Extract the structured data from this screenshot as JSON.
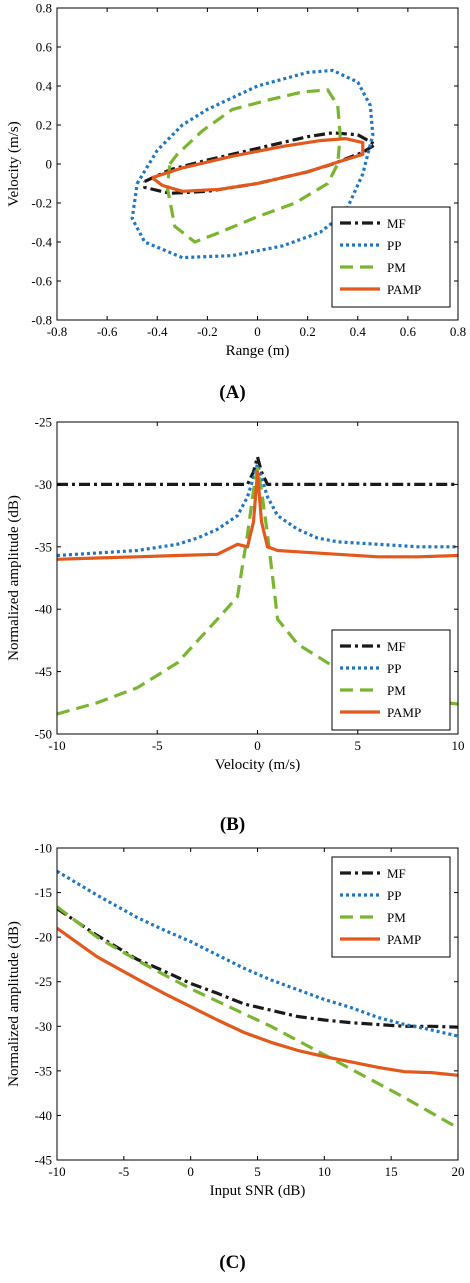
{
  "chart_data": [
    {
      "panel": "(A)",
      "type": "line",
      "xlabel": "Range (m)",
      "ylabel": "Velocity (m/s)",
      "xlim": [
        -0.8,
        0.8
      ],
      "ylim": [
        -0.8,
        0.8
      ],
      "xticks": [
        -0.8,
        -0.6,
        -0.4,
        -0.2,
        0,
        0.2,
        0.4,
        0.6,
        0.8
      ],
      "yticks": [
        -0.8,
        -0.6,
        -0.4,
        -0.2,
        0,
        0.2,
        0.4,
        0.6,
        0.8
      ],
      "legend_position": "bottom-right",
      "series": [
        {
          "name": "MF",
          "color": "#1a1a1a",
          "style": "dashdot",
          "points": [
            [
              -0.45,
              -0.09
            ],
            [
              -0.35,
              -0.03
            ],
            [
              -0.2,
              0.02
            ],
            [
              0,
              0.08
            ],
            [
              0.2,
              0.14
            ],
            [
              0.3,
              0.16
            ],
            [
              0.4,
              0.15
            ],
            [
              0.47,
              0.1
            ],
            [
              0.42,
              0.06
            ],
            [
              0.3,
              0.0
            ],
            [
              0.2,
              -0.04
            ],
            [
              0,
              -0.1
            ],
            [
              -0.2,
              -0.14
            ],
            [
              -0.35,
              -0.15
            ],
            [
              -0.45,
              -0.12
            ],
            [
              -0.45,
              -0.09
            ]
          ]
        },
        {
          "name": "PP",
          "color": "#1f77c4",
          "style": "dotted",
          "points": [
            [
              -0.48,
              -0.1
            ],
            [
              -0.4,
              0.07
            ],
            [
              -0.3,
              0.2
            ],
            [
              -0.2,
              0.28
            ],
            [
              0,
              0.4
            ],
            [
              0.2,
              0.47
            ],
            [
              0.3,
              0.48
            ],
            [
              0.4,
              0.42
            ],
            [
              0.45,
              0.3
            ],
            [
              0.46,
              0.15
            ],
            [
              0.42,
              -0.05
            ],
            [
              0.35,
              -0.25
            ],
            [
              0.25,
              -0.35
            ],
            [
              0.1,
              -0.42
            ],
            [
              -0.1,
              -0.47
            ],
            [
              -0.3,
              -0.48
            ],
            [
              -0.45,
              -0.4
            ],
            [
              -0.5,
              -0.28
            ],
            [
              -0.48,
              -0.1
            ]
          ]
        },
        {
          "name": "PM",
          "color": "#7ab532",
          "style": "dashed",
          "points": [
            [
              -0.35,
              0.0
            ],
            [
              -0.32,
              0.05
            ],
            [
              -0.22,
              0.17
            ],
            [
              -0.1,
              0.28
            ],
            [
              0.05,
              0.33
            ],
            [
              0.18,
              0.37
            ],
            [
              0.28,
              0.38
            ],
            [
              0.32,
              0.3
            ],
            [
              0.33,
              0.15
            ],
            [
              0.32,
              0.0
            ],
            [
              0.28,
              -0.1
            ],
            [
              0.15,
              -0.2
            ],
            [
              0,
              -0.27
            ],
            [
              -0.15,
              -0.35
            ],
            [
              -0.25,
              -0.4
            ],
            [
              -0.33,
              -0.32
            ],
            [
              -0.36,
              -0.12
            ],
            [
              -0.35,
              0.0
            ]
          ]
        },
        {
          "name": "PAMP",
          "color": "#e3581c",
          "style": "solid",
          "points": [
            [
              -0.42,
              -0.07
            ],
            [
              -0.3,
              -0.02
            ],
            [
              -0.1,
              0.04
            ],
            [
              0.1,
              0.09
            ],
            [
              0.25,
              0.12
            ],
            [
              0.35,
              0.13
            ],
            [
              0.42,
              0.11
            ],
            [
              0.42,
              0.05
            ],
            [
              0.32,
              0.01
            ],
            [
              0.2,
              -0.04
            ],
            [
              0.0,
              -0.1
            ],
            [
              -0.15,
              -0.13
            ],
            [
              -0.3,
              -0.14
            ],
            [
              -0.38,
              -0.11
            ],
            [
              -0.42,
              -0.07
            ]
          ]
        }
      ]
    },
    {
      "panel": "(B)",
      "type": "line",
      "xlabel": "Velocity (m/s)",
      "ylabel": "Normalized amplitude (dB)",
      "xlim": [
        -10,
        10
      ],
      "ylim": [
        -50,
        -25
      ],
      "xticks": [
        -10,
        -5,
        0,
        5,
        10
      ],
      "yticks": [
        -50,
        -45,
        -40,
        -35,
        -30,
        -25
      ],
      "legend_position": "bottom-right",
      "series": [
        {
          "name": "MF",
          "color": "#1a1a1a",
          "style": "dashdot",
          "points": [
            [
              -10,
              -30.0
            ],
            [
              -6,
              -30.0
            ],
            [
              -2,
              -30.0
            ],
            [
              -1,
              -30.0
            ],
            [
              -0.5,
              -30.0
            ],
            [
              -0.2,
              -29.0
            ],
            [
              0,
              -27.8
            ],
            [
              0.2,
              -29.0
            ],
            [
              0.5,
              -30.0
            ],
            [
              1,
              -30.0
            ],
            [
              2,
              -30.0
            ],
            [
              6,
              -30.0
            ],
            [
              10,
              -30.0
            ]
          ]
        },
        {
          "name": "PP",
          "color": "#1f77c4",
          "style": "dotted",
          "points": [
            [
              -10,
              -35.7
            ],
            [
              -8,
              -35.5
            ],
            [
              -6,
              -35.3
            ],
            [
              -4,
              -34.8
            ],
            [
              -3,
              -34.3
            ],
            [
              -2,
              -33.6
            ],
            [
              -1,
              -32.5
            ],
            [
              -0.5,
              -31.0
            ],
            [
              0,
              -28.4
            ],
            [
              0.5,
              -31.0
            ],
            [
              1,
              -32.5
            ],
            [
              2,
              -33.6
            ],
            [
              3,
              -34.3
            ],
            [
              4,
              -34.6
            ],
            [
              6,
              -34.8
            ],
            [
              8,
              -35.0
            ],
            [
              10,
              -35.0
            ]
          ]
        },
        {
          "name": "PM",
          "color": "#7ab532",
          "style": "dashed",
          "points": [
            [
              -10,
              -48.4
            ],
            [
              -8,
              -47.5
            ],
            [
              -6,
              -46.3
            ],
            [
              -4,
              -44.3
            ],
            [
              -2,
              -40.8
            ],
            [
              -1,
              -39.0
            ],
            [
              -0.5,
              -34.0
            ],
            [
              -0.2,
              -30.5
            ],
            [
              0,
              -28.7
            ],
            [
              0.2,
              -30.5
            ],
            [
              0.5,
              -34.0
            ],
            [
              1,
              -40.8
            ],
            [
              2,
              -42.8
            ],
            [
              4,
              -44.8
            ],
            [
              6,
              -46.5
            ],
            [
              8,
              -47.3
            ],
            [
              10,
              -47.6
            ]
          ]
        },
        {
          "name": "PAMP",
          "color": "#e3581c",
          "style": "solid",
          "points": [
            [
              -10,
              -36.0
            ],
            [
              -8,
              -35.9
            ],
            [
              -6,
              -35.8
            ],
            [
              -4,
              -35.7
            ],
            [
              -2,
              -35.6
            ],
            [
              -1,
              -34.8
            ],
            [
              -0.5,
              -35.0
            ],
            [
              -0.2,
              -33.0
            ],
            [
              0,
              -29.0
            ],
            [
              0.2,
              -33.0
            ],
            [
              0.5,
              -35.0
            ],
            [
              1,
              -35.3
            ],
            [
              2,
              -35.4
            ],
            [
              4,
              -35.6
            ],
            [
              6,
              -35.8
            ],
            [
              8,
              -35.8
            ],
            [
              10,
              -35.7
            ]
          ]
        }
      ]
    },
    {
      "panel": "(C)",
      "type": "line",
      "xlabel": "Input SNR (dB)",
      "ylabel": "Normalized amplitude (dB)",
      "xlim": [
        -10,
        20
      ],
      "ylim": [
        -45,
        -10
      ],
      "xticks": [
        -10,
        -5,
        0,
        5,
        10,
        15,
        20
      ],
      "yticks": [
        -45,
        -40,
        -35,
        -30,
        -25,
        -20,
        -15,
        -10
      ],
      "legend_position": "top-right",
      "series": [
        {
          "name": "MF",
          "color": "#1a1a1a",
          "style": "dashdot",
          "points": [
            [
              -10,
              -16.8
            ],
            [
              -7,
              -19.8
            ],
            [
              -4,
              -22.5
            ],
            [
              -2,
              -23.8
            ],
            [
              0,
              -25.2
            ],
            [
              2,
              -26.3
            ],
            [
              4,
              -27.5
            ],
            [
              6,
              -28.2
            ],
            [
              8,
              -28.9
            ],
            [
              10,
              -29.3
            ],
            [
              12,
              -29.6
            ],
            [
              14,
              -29.8
            ],
            [
              16,
              -30.0
            ],
            [
              18,
              -30.0
            ],
            [
              20,
              -30.1
            ]
          ]
        },
        {
          "name": "PP",
          "color": "#1f77c4",
          "style": "dotted",
          "points": [
            [
              -10,
              -12.6
            ],
            [
              -7,
              -15.3
            ],
            [
              -4,
              -17.8
            ],
            [
              -2,
              -19.2
            ],
            [
              0,
              -20.5
            ],
            [
              2,
              -22.0
            ],
            [
              4,
              -23.5
            ],
            [
              6,
              -24.8
            ],
            [
              8,
              -25.9
            ],
            [
              10,
              -27.0
            ],
            [
              12,
              -27.9
            ],
            [
              14,
              -29.0
            ],
            [
              16,
              -29.8
            ],
            [
              18,
              -30.4
            ],
            [
              20,
              -31.1
            ]
          ]
        },
        {
          "name": "PM",
          "color": "#7ab532",
          "style": "dashed",
          "points": [
            [
              -10,
              -16.6
            ],
            [
              -7,
              -20.0
            ],
            [
              -4,
              -22.6
            ],
            [
              -2,
              -24.2
            ],
            [
              0,
              -25.8
            ],
            [
              2,
              -27.2
            ],
            [
              4,
              -28.6
            ],
            [
              6,
              -30.0
            ],
            [
              8,
              -31.6
            ],
            [
              10,
              -33.2
            ],
            [
              12,
              -34.8
            ],
            [
              14,
              -36.4
            ],
            [
              16,
              -38.0
            ],
            [
              18,
              -39.7
            ],
            [
              20,
              -41.4
            ]
          ]
        },
        {
          "name": "PAMP",
          "color": "#e3581c",
          "style": "solid",
          "points": [
            [
              -10,
              -19.0
            ],
            [
              -7,
              -22.2
            ],
            [
              -4,
              -24.7
            ],
            [
              -2,
              -26.3
            ],
            [
              0,
              -27.8
            ],
            [
              2,
              -29.3
            ],
            [
              4,
              -30.7
            ],
            [
              6,
              -31.8
            ],
            [
              8,
              -32.7
            ],
            [
              10,
              -33.4
            ],
            [
              12,
              -34.0
            ],
            [
              14,
              -34.6
            ],
            [
              16,
              -35.1
            ],
            [
              18,
              -35.2
            ],
            [
              20,
              -35.5
            ]
          ]
        }
      ]
    }
  ]
}
